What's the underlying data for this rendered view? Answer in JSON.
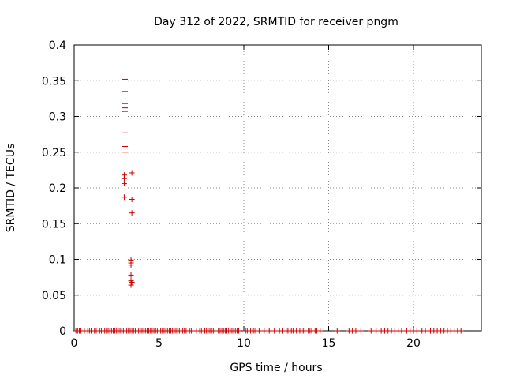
{
  "chart_data": {
    "type": "scatter",
    "title": "Day 312 of 2022, SRMTID for receiver pngm",
    "xlabel": "GPS time / hours",
    "ylabel": "SRMTID / TECUs",
    "xlim": [
      0,
      24
    ],
    "ylim": [
      0,
      0.4
    ],
    "xticks": [
      "0",
      "5",
      "10",
      "15",
      "20"
    ],
    "yticks": [
      "0",
      "0.05",
      "0.1",
      "0.15",
      "0.2",
      "0.25",
      "0.3",
      "0.35",
      "0.4"
    ],
    "xtick_values": [
      0,
      5,
      10,
      15,
      20
    ],
    "ytick_values": [
      0,
      0.05,
      0.1,
      0.15,
      0.2,
      0.25,
      0.3,
      0.35,
      0.4
    ],
    "grid": true,
    "marker": "+",
    "color": "#cc0000",
    "series": [
      {
        "points": [
          [
            3.0,
            0.352
          ],
          [
            3.0,
            0.335
          ],
          [
            3.0,
            0.318
          ],
          [
            3.0,
            0.312
          ],
          [
            3.0,
            0.307
          ],
          [
            3.0,
            0.277
          ],
          [
            3.0,
            0.258
          ],
          [
            3.0,
            0.25
          ],
          [
            2.95,
            0.218
          ],
          [
            2.95,
            0.213
          ],
          [
            2.95,
            0.206
          ],
          [
            2.95,
            0.187
          ],
          [
            3.4,
            0.221
          ],
          [
            3.4,
            0.184
          ],
          [
            3.4,
            0.165
          ],
          [
            3.35,
            0.099
          ],
          [
            3.35,
            0.095
          ],
          [
            3.35,
            0.092
          ],
          [
            3.35,
            0.078
          ],
          [
            3.35,
            0.07
          ],
          [
            3.4,
            0.068
          ],
          [
            3.35,
            0.064
          ],
          [
            0.1,
            0
          ],
          [
            0.2,
            0
          ],
          [
            0.3,
            0
          ],
          [
            0.4,
            0
          ],
          [
            0.6,
            0
          ],
          [
            0.8,
            0
          ],
          [
            0.9,
            0
          ],
          [
            1.0,
            0
          ],
          [
            1.2,
            0
          ],
          [
            1.3,
            0
          ],
          [
            1.5,
            0
          ],
          [
            1.6,
            0
          ],
          [
            1.7,
            0
          ],
          [
            1.8,
            0
          ],
          [
            1.9,
            0
          ],
          [
            2.0,
            0
          ],
          [
            2.1,
            0
          ],
          [
            2.2,
            0
          ],
          [
            2.3,
            0
          ],
          [
            2.4,
            0
          ],
          [
            2.5,
            0
          ],
          [
            2.6,
            0
          ],
          [
            2.7,
            0
          ],
          [
            2.8,
            0
          ],
          [
            2.9,
            0
          ],
          [
            3.0,
            0
          ],
          [
            3.1,
            0
          ],
          [
            3.2,
            0
          ],
          [
            3.3,
            0
          ],
          [
            3.4,
            0
          ],
          [
            3.5,
            0
          ],
          [
            3.6,
            0
          ],
          [
            3.7,
            0
          ],
          [
            3.8,
            0
          ],
          [
            3.9,
            0
          ],
          [
            4.0,
            0
          ],
          [
            4.1,
            0
          ],
          [
            4.2,
            0
          ],
          [
            4.3,
            0
          ],
          [
            4.4,
            0
          ],
          [
            4.5,
            0
          ],
          [
            4.6,
            0
          ],
          [
            4.7,
            0
          ],
          [
            4.8,
            0
          ],
          [
            4.9,
            0
          ],
          [
            5.0,
            0
          ],
          [
            5.1,
            0
          ],
          [
            5.2,
            0
          ],
          [
            5.3,
            0
          ],
          [
            5.4,
            0
          ],
          [
            5.5,
            0
          ],
          [
            5.6,
            0
          ],
          [
            5.7,
            0
          ],
          [
            5.8,
            0
          ],
          [
            5.9,
            0
          ],
          [
            6.0,
            0
          ],
          [
            6.1,
            0
          ],
          [
            6.2,
            0
          ],
          [
            6.4,
            0
          ],
          [
            6.5,
            0
          ],
          [
            6.6,
            0
          ],
          [
            6.8,
            0
          ],
          [
            6.9,
            0
          ],
          [
            7.0,
            0
          ],
          [
            7.2,
            0
          ],
          [
            7.4,
            0
          ],
          [
            7.5,
            0
          ],
          [
            7.7,
            0
          ],
          [
            7.8,
            0
          ],
          [
            7.9,
            0
          ],
          [
            8.0,
            0
          ],
          [
            8.1,
            0
          ],
          [
            8.2,
            0
          ],
          [
            8.3,
            0
          ],
          [
            8.5,
            0
          ],
          [
            8.6,
            0
          ],
          [
            8.7,
            0
          ],
          [
            8.8,
            0
          ],
          [
            8.9,
            0
          ],
          [
            9.0,
            0
          ],
          [
            9.1,
            0
          ],
          [
            9.2,
            0
          ],
          [
            9.3,
            0
          ],
          [
            9.4,
            0
          ],
          [
            9.5,
            0
          ],
          [
            9.6,
            0
          ],
          [
            9.7,
            0
          ],
          [
            10.1,
            0
          ],
          [
            10.2,
            0
          ],
          [
            10.4,
            0
          ],
          [
            10.5,
            0
          ],
          [
            10.6,
            0
          ],
          [
            10.7,
            0
          ],
          [
            10.9,
            0
          ],
          [
            11.2,
            0
          ],
          [
            11.5,
            0
          ],
          [
            11.8,
            0
          ],
          [
            12.1,
            0
          ],
          [
            12.3,
            0
          ],
          [
            12.5,
            0
          ],
          [
            12.6,
            0
          ],
          [
            12.8,
            0
          ],
          [
            12.9,
            0
          ],
          [
            13.1,
            0
          ],
          [
            13.3,
            0
          ],
          [
            13.5,
            0
          ],
          [
            13.6,
            0
          ],
          [
            13.8,
            0
          ],
          [
            13.9,
            0
          ],
          [
            14.0,
            0
          ],
          [
            14.2,
            0
          ],
          [
            14.3,
            0
          ],
          [
            14.5,
            0
          ],
          [
            15.5,
            0
          ],
          [
            16.2,
            0
          ],
          [
            16.4,
            0
          ],
          [
            16.6,
            0
          ],
          [
            16.9,
            0
          ],
          [
            17.5,
            0
          ],
          [
            17.8,
            0
          ],
          [
            18.1,
            0
          ],
          [
            18.3,
            0
          ],
          [
            18.5,
            0
          ],
          [
            18.7,
            0
          ],
          [
            18.9,
            0
          ],
          [
            19.1,
            0
          ],
          [
            19.3,
            0
          ],
          [
            19.6,
            0
          ],
          [
            19.8,
            0
          ],
          [
            20.0,
            0
          ],
          [
            20.2,
            0
          ],
          [
            20.5,
            0
          ],
          [
            20.7,
            0
          ],
          [
            21.0,
            0
          ],
          [
            21.2,
            0
          ],
          [
            21.4,
            0
          ],
          [
            21.6,
            0
          ],
          [
            21.8,
            0
          ],
          [
            22.0,
            0
          ],
          [
            22.2,
            0
          ],
          [
            22.4,
            0
          ],
          [
            22.6,
            0
          ],
          [
            22.8,
            0
          ]
        ]
      }
    ]
  }
}
